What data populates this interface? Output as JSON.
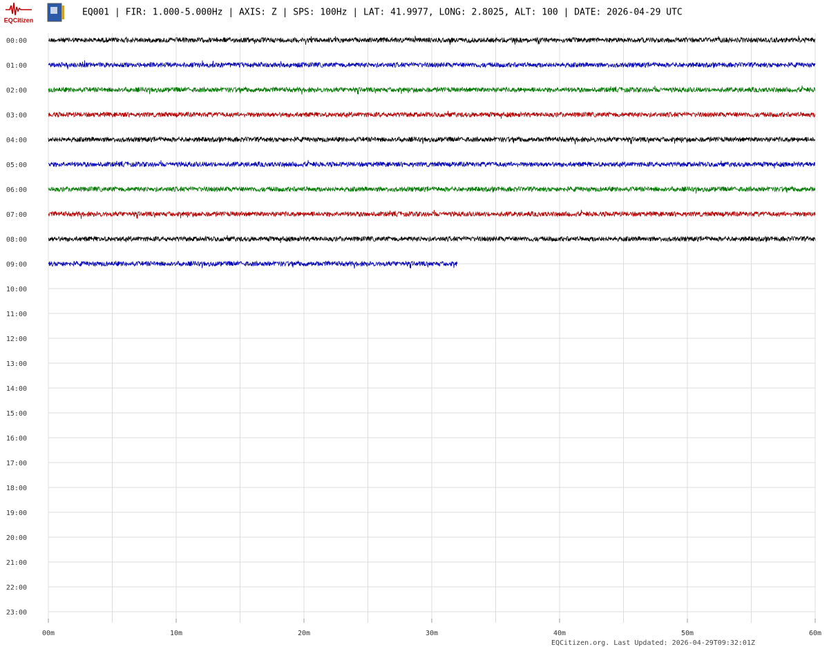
{
  "chart_data": {
    "type": "helicorder",
    "logo": "EQCitizen",
    "title": "EQ001 | FIR: 1.000-5.000Hz | AXIS: Z | SPS: 100Hz | LAT: 41.9977, LONG: 2.8025, ALT: 100 | DATE: 2026-04-29 UTC",
    "footer": "EQCitizen.org. Last Updated: 2026-04-29T09:32:01Z",
    "categories": [
      "00:00",
      "01:00",
      "02:00",
      "03:00",
      "04:00",
      "05:00",
      "06:00",
      "07:00",
      "08:00",
      "09:00",
      "10:00",
      "11:00",
      "12:00",
      "13:00",
      "14:00",
      "15:00",
      "16:00",
      "17:00",
      "18:00",
      "19:00",
      "20:00",
      "21:00",
      "22:00",
      "23:00"
    ],
    "xlim": [
      0,
      60
    ],
    "xticks": [
      {
        "value": 0,
        "label": "00m"
      },
      {
        "value": 10,
        "label": "10m"
      },
      {
        "value": 20,
        "label": "20m"
      },
      {
        "value": 30,
        "label": "30m"
      },
      {
        "value": 40,
        "label": "40m"
      },
      {
        "value": 50,
        "label": "50m"
      },
      {
        "value": 60,
        "label": "60m"
      }
    ],
    "grid_step": 5,
    "traces": [
      {
        "color": "#000000",
        "values": [
          0,
          60
        ]
      },
      {
        "color": "#0000b4",
        "values": [
          0,
          60
        ]
      },
      {
        "color": "#007800",
        "values": [
          0,
          60
        ]
      },
      {
        "color": "#b40000",
        "values": [
          0,
          60
        ]
      },
      {
        "color": "#000000",
        "values": [
          0,
          60
        ]
      },
      {
        "color": "#0000b4",
        "values": [
          0,
          60
        ]
      },
      {
        "color": "#007800",
        "values": [
          0,
          60
        ]
      },
      {
        "color": "#b40000",
        "values": [
          0,
          60
        ]
      },
      {
        "color": "#000000",
        "values": [
          0,
          60
        ]
      },
      {
        "color": "#0000b4",
        "values": [
          0,
          32
        ]
      }
    ]
  }
}
